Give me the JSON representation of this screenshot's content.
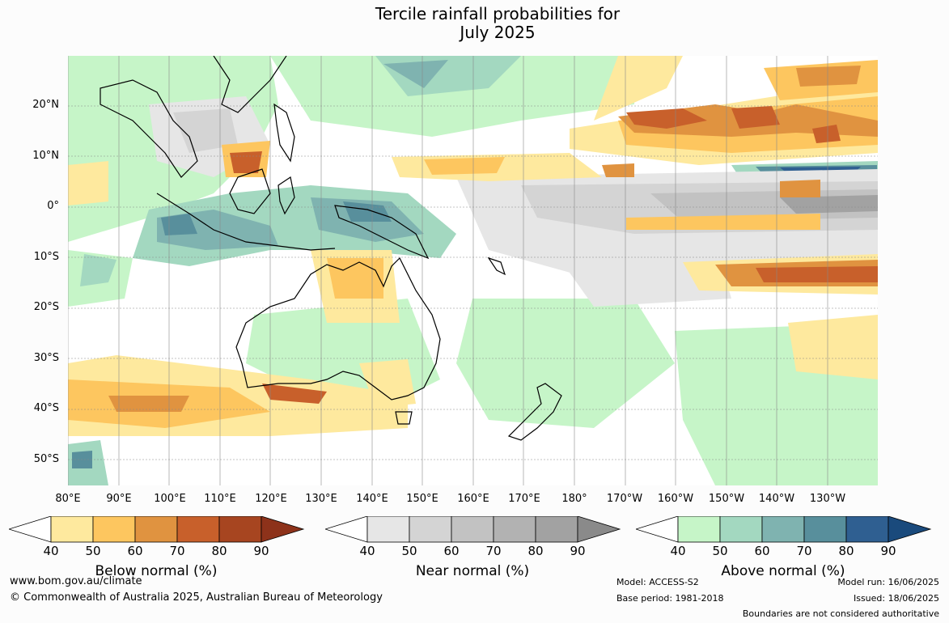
{
  "title": {
    "line1": "Tercile rainfall probabilities for",
    "line2": "July 2025"
  },
  "lat_labels": [
    "20°N",
    "10°N",
    "0°",
    "10°S",
    "20°S",
    "30°S",
    "40°S",
    "50°S"
  ],
  "lon_labels": [
    "80°E",
    "90°E",
    "100°E",
    "110°E",
    "120°E",
    "130°E",
    "140°E",
    "150°E",
    "160°E",
    "170°E",
    "180°",
    "170°W",
    "160°W",
    "150°W",
    "140°W",
    "130°W"
  ],
  "colorbars": [
    {
      "name": "Below normal (%)",
      "ticks": [
        "40",
        "50",
        "60",
        "70",
        "80",
        "90"
      ],
      "colors": [
        "#ffffff",
        "#fee99e",
        "#fdc65f",
        "#e09340",
        "#c8602b",
        "#a74520",
        "#8d321a"
      ]
    },
    {
      "name": "Near normal (%)",
      "ticks": [
        "40",
        "50",
        "60",
        "70",
        "80",
        "90"
      ],
      "colors": [
        "#ffffff",
        "#e6e6e6",
        "#d4d4d4",
        "#c2c2c2",
        "#b2b2b2",
        "#a2a2a2",
        "#8a8a8a"
      ]
    },
    {
      "name": "Above normal (%)",
      "ticks": [
        "40",
        "50",
        "60",
        "70",
        "80",
        "90"
      ],
      "colors": [
        "#ffffff",
        "#c6f5c8",
        "#a3d8c0",
        "#7fb3b0",
        "#588f9c",
        "#2f5f91",
        "#1a4a7c"
      ]
    }
  ],
  "footer": {
    "url": "www.bom.gov.au/climate",
    "copyright": "© Commonwealth of Australia 2025, Australian Bureau of Meteorology",
    "model": "Model: ACCESS-S2",
    "base_period": "Base period: 1981-2018",
    "model_run": "Model run: 16/06/2025",
    "issued": "Issued: 18/06/2025",
    "disclaimer": "Boundaries are not considered authoritative"
  }
}
